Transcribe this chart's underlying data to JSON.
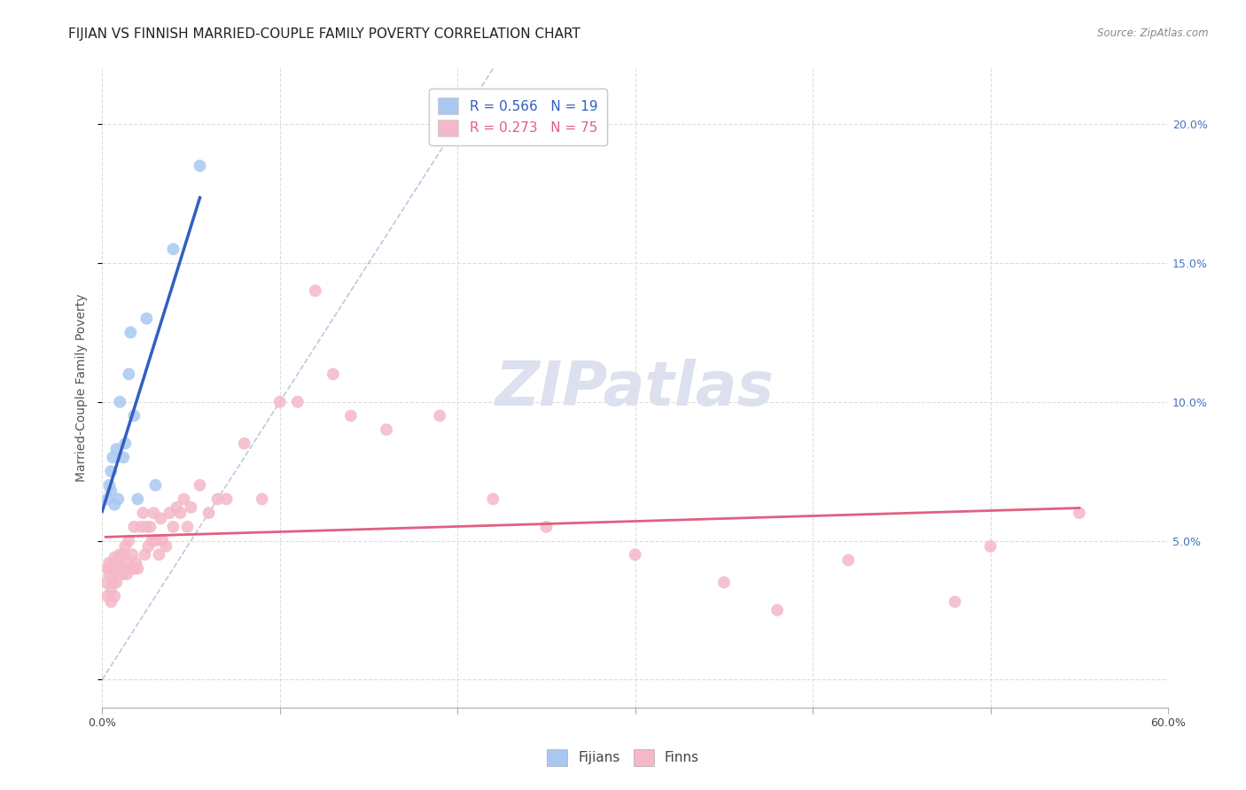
{
  "title": "FIJIAN VS FINNISH MARRIED-COUPLE FAMILY POVERTY CORRELATION CHART",
  "source": "Source: ZipAtlas.com",
  "ylabel": "Married-Couple Family Poverty",
  "xlim": [
    0,
    0.6
  ],
  "ylim": [
    -0.01,
    0.22
  ],
  "xticks": [
    0.0,
    0.1,
    0.2,
    0.3,
    0.4,
    0.5,
    0.6
  ],
  "xtick_labels_show": [
    "0.0%",
    "",
    "",
    "",
    "",
    "",
    "60.0%"
  ],
  "yticks": [
    0.0,
    0.05,
    0.1,
    0.15,
    0.2
  ],
  "ytick_labels_right": [
    "",
    "5.0%",
    "10.0%",
    "15.0%",
    "20.0%"
  ],
  "background_color": "#ffffff",
  "grid_color": "#dddddd",
  "fijian_color": "#a8c8f0",
  "finn_color": "#f4b8c8",
  "fijian_R": 0.566,
  "fijian_N": 19,
  "finn_R": 0.273,
  "finn_N": 75,
  "legend_fijian_label": "R = 0.566   N = 19",
  "legend_finn_label": "R = 0.273   N = 75",
  "fijian_scatter_x": [
    0.003,
    0.004,
    0.005,
    0.005,
    0.006,
    0.007,
    0.008,
    0.009,
    0.01,
    0.012,
    0.013,
    0.015,
    0.016,
    0.018,
    0.02,
    0.025,
    0.03,
    0.04,
    0.055
  ],
  "fijian_scatter_y": [
    0.065,
    0.07,
    0.075,
    0.068,
    0.08,
    0.063,
    0.083,
    0.065,
    0.1,
    0.08,
    0.085,
    0.11,
    0.125,
    0.095,
    0.065,
    0.13,
    0.07,
    0.155,
    0.185
  ],
  "finn_scatter_x": [
    0.002,
    0.003,
    0.003,
    0.004,
    0.004,
    0.005,
    0.005,
    0.005,
    0.006,
    0.006,
    0.007,
    0.007,
    0.007,
    0.008,
    0.008,
    0.009,
    0.009,
    0.01,
    0.01,
    0.011,
    0.012,
    0.012,
    0.013,
    0.013,
    0.014,
    0.015,
    0.015,
    0.016,
    0.017,
    0.018,
    0.018,
    0.019,
    0.02,
    0.022,
    0.023,
    0.024,
    0.025,
    0.026,
    0.027,
    0.028,
    0.029,
    0.03,
    0.032,
    0.033,
    0.034,
    0.036,
    0.038,
    0.04,
    0.042,
    0.044,
    0.046,
    0.048,
    0.05,
    0.055,
    0.06,
    0.065,
    0.07,
    0.08,
    0.09,
    0.1,
    0.11,
    0.12,
    0.13,
    0.14,
    0.16,
    0.19,
    0.22,
    0.25,
    0.3,
    0.35,
    0.38,
    0.42,
    0.48,
    0.5,
    0.55
  ],
  "finn_scatter_y": [
    0.035,
    0.04,
    0.03,
    0.038,
    0.042,
    0.028,
    0.032,
    0.04,
    0.035,
    0.042,
    0.03,
    0.038,
    0.044,
    0.035,
    0.042,
    0.038,
    0.042,
    0.04,
    0.045,
    0.038,
    0.038,
    0.045,
    0.04,
    0.048,
    0.038,
    0.042,
    0.05,
    0.04,
    0.045,
    0.04,
    0.055,
    0.042,
    0.04,
    0.055,
    0.06,
    0.045,
    0.055,
    0.048,
    0.055,
    0.05,
    0.06,
    0.05,
    0.045,
    0.058,
    0.05,
    0.048,
    0.06,
    0.055,
    0.062,
    0.06,
    0.065,
    0.055,
    0.062,
    0.07,
    0.06,
    0.065,
    0.065,
    0.085,
    0.065,
    0.1,
    0.1,
    0.14,
    0.11,
    0.095,
    0.09,
    0.095,
    0.065,
    0.055,
    0.045,
    0.035,
    0.025,
    0.043,
    0.028,
    0.048,
    0.06
  ],
  "fijian_line_color": "#3060c0",
  "finn_line_color": "#e06080",
  "dashed_line_color": "#b0b8d8",
  "watermark_text": "ZIPatlas",
  "watermark_color": "#dde0ee",
  "title_fontsize": 11,
  "axis_label_fontsize": 10,
  "tick_fontsize": 9,
  "legend_fontsize": 11,
  "right_tick_color": "#4472c4"
}
